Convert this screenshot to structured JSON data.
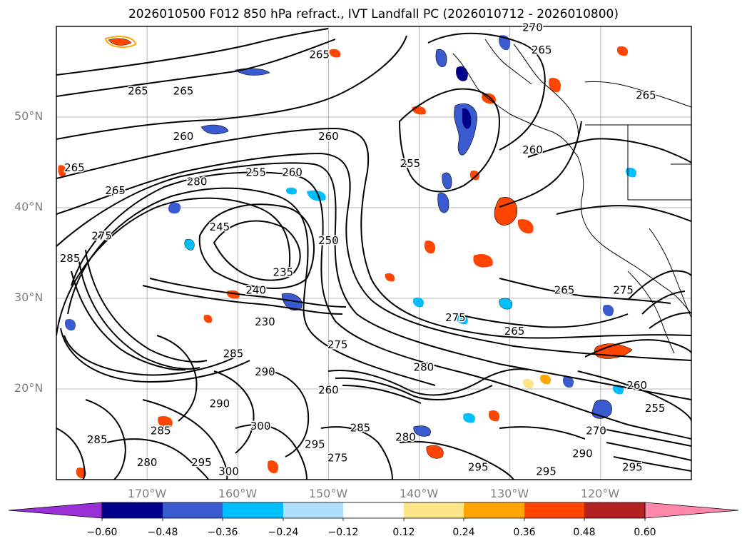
{
  "title": "2026010500 F012 850 hPa refract., IVT Landfall PC (2026010712 - 2026010800)",
  "lat_labels": [
    "50°N",
    "40°N",
    "30°N",
    "20°N"
  ],
  "lon_labels": [
    "170°W",
    "160°W",
    "150°W",
    "140°W",
    "130°W",
    "120°W"
  ],
  "colorbar": {
    "ticks": [
      "−0.60",
      "−0.48",
      "−0.36",
      "−0.24",
      "−0.12",
      "0.12",
      "0.24",
      "0.36",
      "0.48",
      "0.60"
    ],
    "colors": [
      "#9b30d8",
      "#00008b",
      "#3a5bd0",
      "#00bfff",
      "#aee0fb",
      "#ffffff",
      "#fde68a",
      "#ffa500",
      "#ff4500",
      "#b22222",
      "#ff88aa"
    ]
  },
  "contour_labels": [
    {
      "text": "270",
      "lon": -127.5,
      "lat": 59.5
    },
    {
      "text": "265",
      "lon": -126.5,
      "lat": 57
    },
    {
      "text": "265",
      "lon": -151,
      "lat": 56.5
    },
    {
      "text": "265",
      "lon": -171,
      "lat": 52.5
    },
    {
      "text": "265",
      "lon": -166,
      "lat": 52.5
    },
    {
      "text": "265",
      "lon": -115,
      "lat": 52
    },
    {
      "text": "260",
      "lon": -166,
      "lat": 47.5
    },
    {
      "text": "260",
      "lon": -150,
      "lat": 47.5
    },
    {
      "text": "260",
      "lon": -154,
      "lat": 43.5
    },
    {
      "text": "255",
      "lon": -158,
      "lat": 43.5
    },
    {
      "text": "255",
      "lon": -141,
      "lat": 44.5
    },
    {
      "text": "260",
      "lon": -127.5,
      "lat": 46
    },
    {
      "text": "265",
      "lon": -178,
      "lat": 44
    },
    {
      "text": "265",
      "lon": -173.5,
      "lat": 41.5
    },
    {
      "text": "280",
      "lon": -164.5,
      "lat": 42.5
    },
    {
      "text": "275",
      "lon": -175,
      "lat": 36.5
    },
    {
      "text": "245",
      "lon": -162,
      "lat": 37.5
    },
    {
      "text": "250",
      "lon": -150,
      "lat": 36
    },
    {
      "text": "235",
      "lon": -155,
      "lat": 32.5
    },
    {
      "text": "240",
      "lon": -158,
      "lat": 30.5
    },
    {
      "text": "230",
      "lon": -157,
      "lat": 27
    },
    {
      "text": "285",
      "lon": -178.5,
      "lat": 34
    },
    {
      "text": "275",
      "lon": -149,
      "lat": 24.5
    },
    {
      "text": "275",
      "lon": -136,
      "lat": 27.5
    },
    {
      "text": "265",
      "lon": -129.5,
      "lat": 26
    },
    {
      "text": "265",
      "lon": -124,
      "lat": 30.5
    },
    {
      "text": "275",
      "lon": -117.5,
      "lat": 30.5
    },
    {
      "text": "285",
      "lon": -160.5,
      "lat": 23.5
    },
    {
      "text": "290",
      "lon": -157,
      "lat": 21.5
    },
    {
      "text": "280",
      "lon": -139.5,
      "lat": 22
    },
    {
      "text": "260",
      "lon": -150,
      "lat": 19.5
    },
    {
      "text": "290",
      "lon": -162,
      "lat": 18
    },
    {
      "text": "300",
      "lon": -157.5,
      "lat": 15.5
    },
    {
      "text": "285",
      "lon": -168.5,
      "lat": 15
    },
    {
      "text": "280",
      "lon": -170,
      "lat": 11.5
    },
    {
      "text": "285",
      "lon": -175.5,
      "lat": 14
    },
    {
      "text": "295",
      "lon": -164,
      "lat": 11.5
    },
    {
      "text": "300",
      "lon": -161,
      "lat": 10.5
    },
    {
      "text": "295",
      "lon": -151.5,
      "lat": 13.5
    },
    {
      "text": "285",
      "lon": -146.5,
      "lat": 15.3
    },
    {
      "text": "280",
      "lon": -141.5,
      "lat": 14.3
    },
    {
      "text": "275",
      "lon": -149,
      "lat": 12
    },
    {
      "text": "295",
      "lon": -133.5,
      "lat": 11
    },
    {
      "text": "295",
      "lon": -126,
      "lat": 10.5
    },
    {
      "text": "290",
      "lon": -122,
      "lat": 12.5
    },
    {
      "text": "270",
      "lon": -120.5,
      "lat": 15
    },
    {
      "text": "295",
      "lon": -116.5,
      "lat": 11
    },
    {
      "text": "260",
      "lon": -116,
      "lat": 20
    },
    {
      "text": "255",
      "lon": -114,
      "lat": 17.5
    }
  ]
}
